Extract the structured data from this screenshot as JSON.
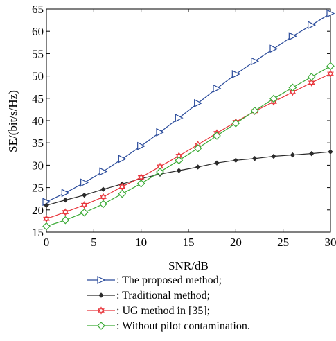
{
  "chart_data": {
    "type": "line",
    "xlabel": "SNR/dB",
    "ylabel": "SE/(bit/s/Hz)",
    "xlim": [
      0,
      30
    ],
    "ylim": [
      15,
      65
    ],
    "xticks": [
      0,
      5,
      10,
      15,
      20,
      25,
      30
    ],
    "yticks": [
      15,
      20,
      25,
      30,
      35,
      40,
      45,
      50,
      55,
      60,
      65
    ],
    "grid": false,
    "legend_position": "below-plot",
    "x": [
      0,
      2,
      4,
      6,
      8,
      10,
      12,
      14,
      16,
      18,
      20,
      22,
      24,
      26,
      28,
      30
    ],
    "series": [
      {
        "name": ": The proposed method;",
        "color": "#2a4b9b",
        "marker": "triangle-right",
        "values": [
          21.8,
          23.8,
          26.1,
          28.6,
          31.4,
          34.3,
          37.4,
          40.6,
          43.9,
          47.2,
          50.4,
          53.3,
          56.1,
          58.9,
          61.4,
          64.0
        ]
      },
      {
        "name": ": Traditional method;",
        "color": "#2b2b2b",
        "marker": "diamond-filled",
        "values": [
          21.0,
          22.2,
          23.3,
          24.6,
          25.8,
          27.0,
          28.0,
          28.8,
          29.6,
          30.5,
          31.1,
          31.5,
          32.0,
          32.3,
          32.6,
          33.0
        ]
      },
      {
        "name": ": UG method in [35];",
        "color": "#e8343a",
        "marker": "hexagram",
        "values": [
          18.0,
          19.5,
          21.1,
          22.9,
          25.2,
          27.3,
          29.7,
          32.1,
          34.6,
          37.2,
          39.7,
          42.1,
          44.2,
          46.4,
          48.5,
          50.5
        ]
      },
      {
        "name": ": Without pilot contamination.",
        "color": "#3aaa35",
        "marker": "diamond",
        "values": [
          16.3,
          17.7,
          19.4,
          21.3,
          23.6,
          25.9,
          28.5,
          31.1,
          33.8,
          36.6,
          39.4,
          42.2,
          44.9,
          47.4,
          49.8,
          52.2
        ]
      }
    ]
  }
}
